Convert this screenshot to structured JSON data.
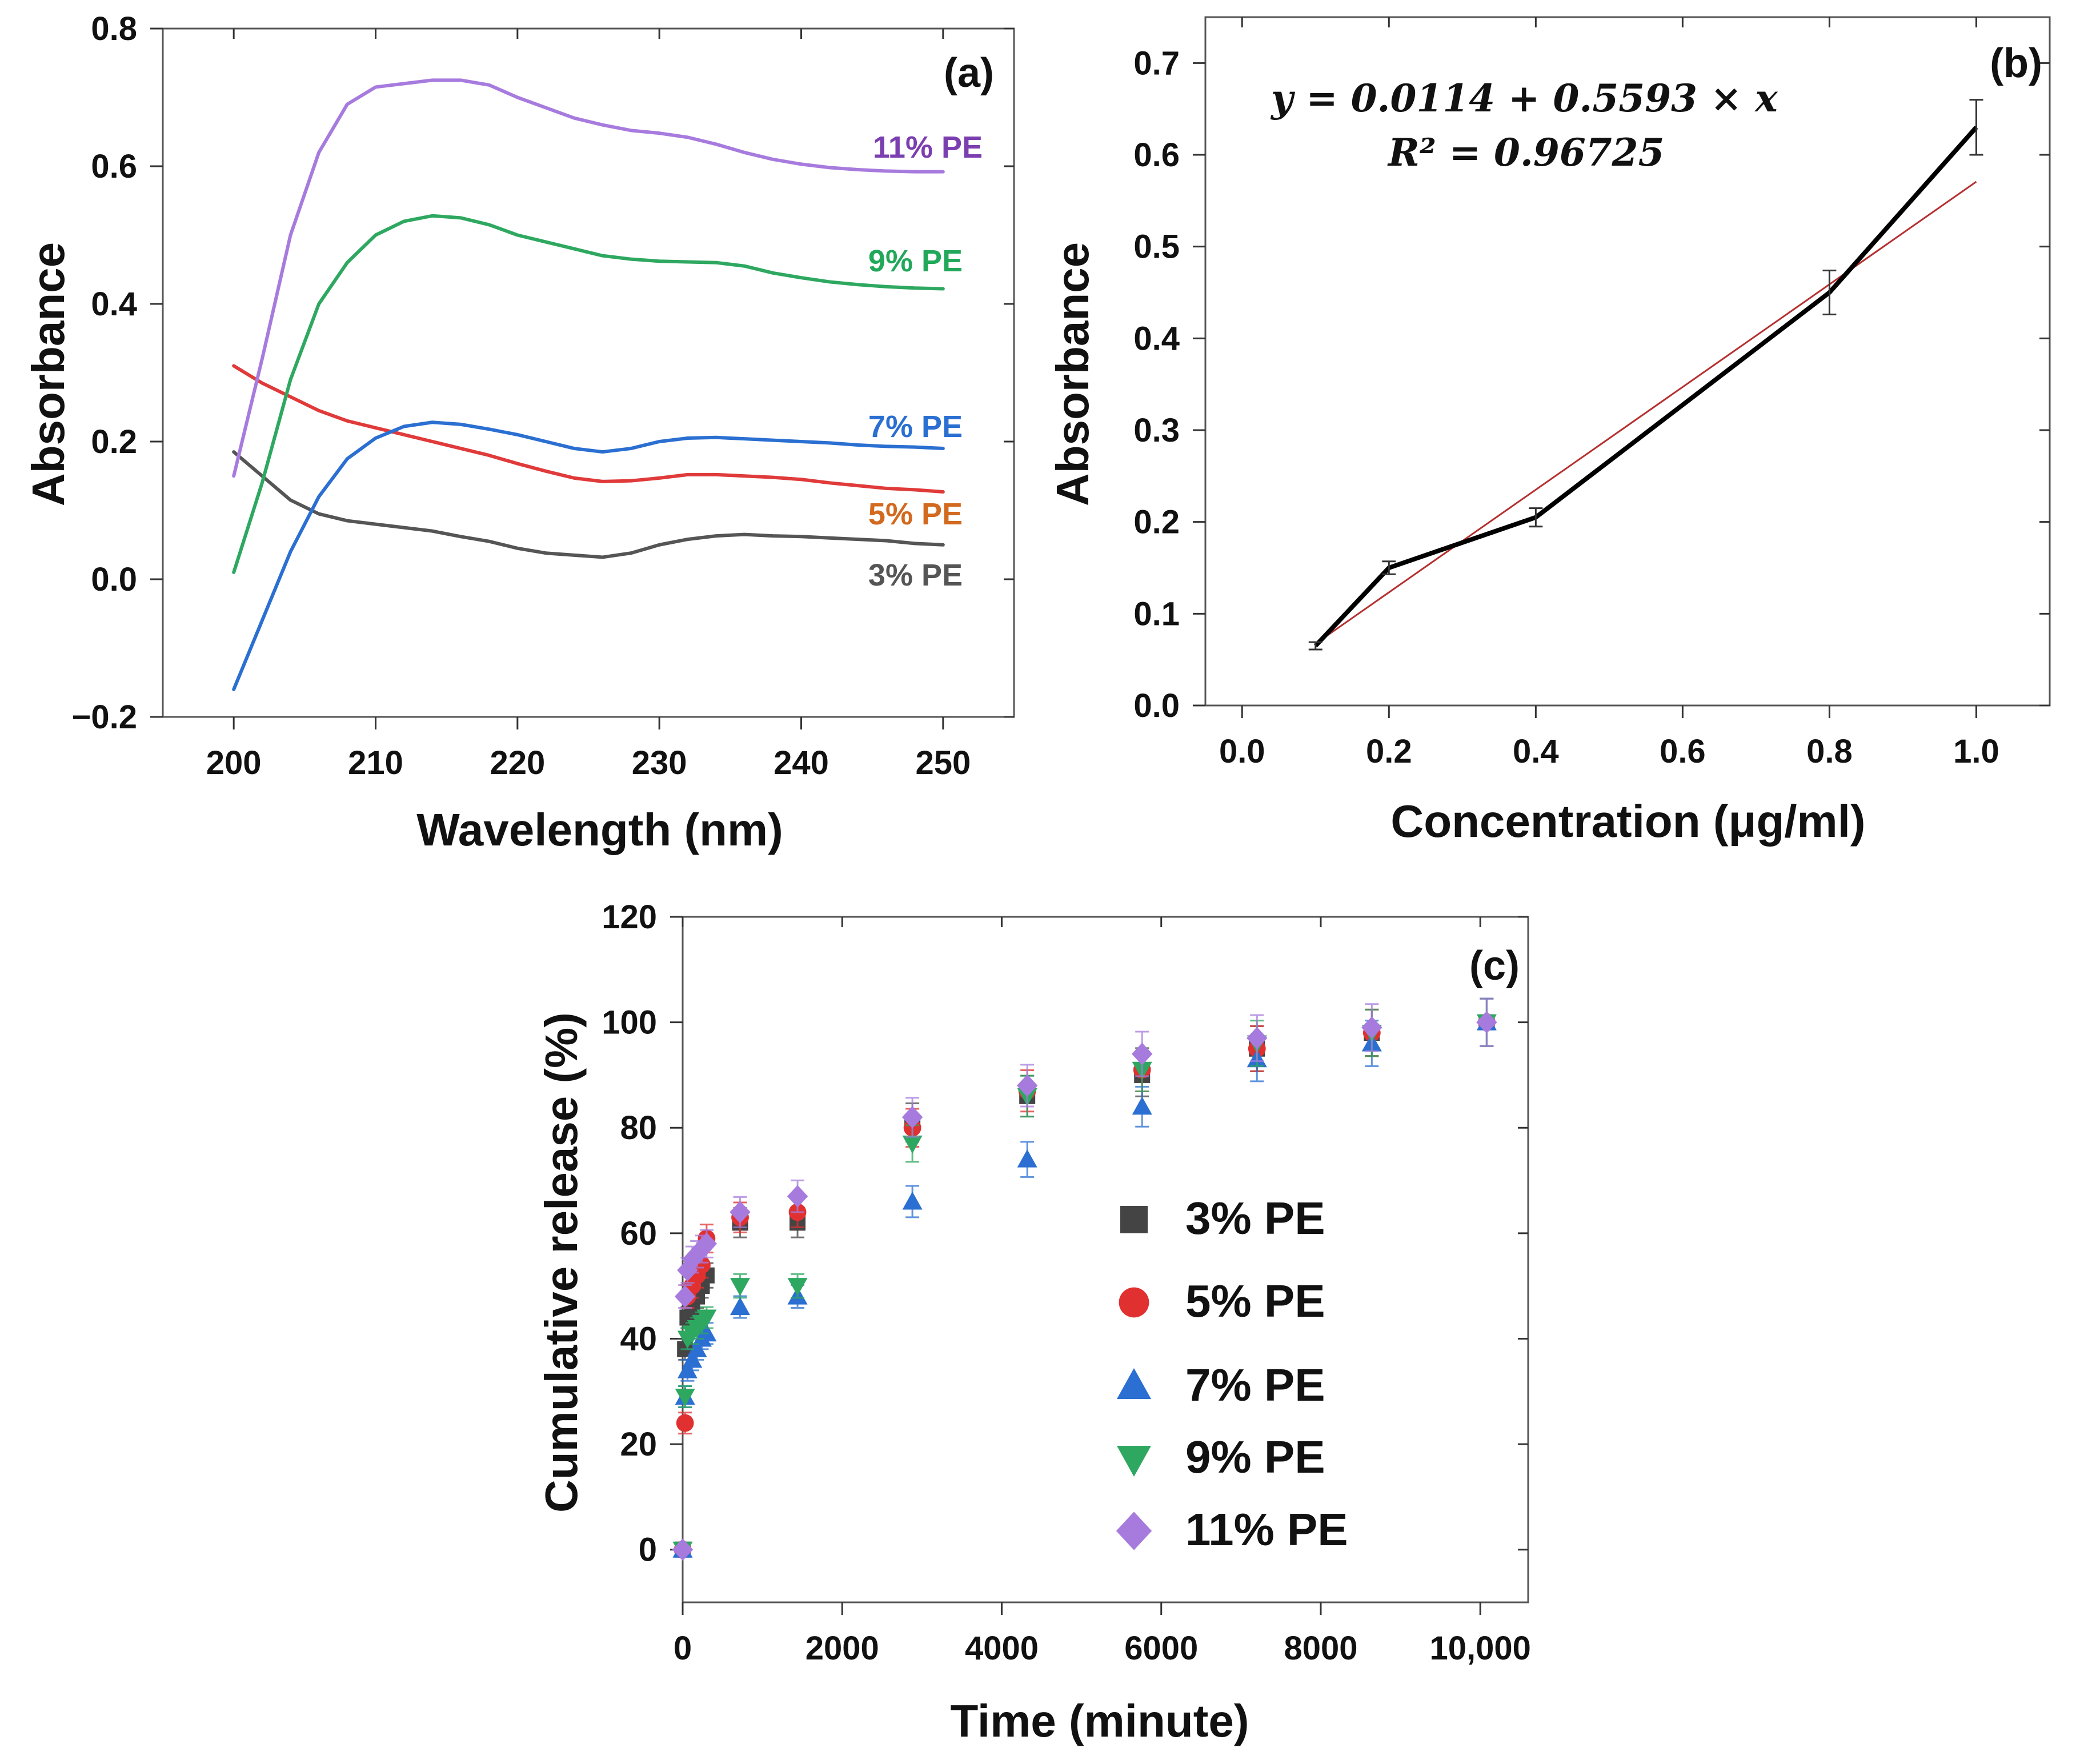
{
  "chart_data": [
    {
      "panel": "(a)",
      "type": "line",
      "xlabel": "Wavelength (nm)",
      "ylabel": "Absorbance",
      "xlim": [
        195,
        255
      ],
      "ylim": [
        -0.2,
        0.8
      ],
      "xticks": [
        "200",
        "210",
        "220",
        "230",
        "240",
        "250"
      ],
      "yticks": [
        "−0.2",
        "0.0",
        "0.2",
        "0.4",
        "0.6",
        "0.8"
      ],
      "x": [
        200,
        202,
        204,
        206,
        208,
        210,
        212,
        214,
        216,
        218,
        220,
        222,
        224,
        226,
        228,
        230,
        232,
        234,
        236,
        238,
        240,
        242,
        244,
        246,
        248,
        250
      ],
      "series": [
        {
          "name": "3% PE",
          "color": "#555555",
          "values": [
            0.185,
            0.15,
            0.115,
            0.095,
            0.085,
            0.08,
            0.075,
            0.07,
            0.062,
            0.055,
            0.045,
            0.038,
            0.035,
            0.032,
            0.038,
            0.05,
            0.058,
            0.063,
            0.065,
            0.063,
            0.062,
            0.06,
            0.058,
            0.056,
            0.052,
            0.05
          ]
        },
        {
          "name": "5% PE",
          "color": "#e03a3a",
          "values": [
            0.31,
            0.285,
            0.265,
            0.245,
            0.23,
            0.22,
            0.21,
            0.2,
            0.19,
            0.18,
            0.168,
            0.157,
            0.147,
            0.142,
            0.143,
            0.147,
            0.152,
            0.152,
            0.15,
            0.148,
            0.145,
            0.14,
            0.136,
            0.132,
            0.13,
            0.127
          ]
        },
        {
          "name": "7% PE",
          "color": "#2a6fd1",
          "values": [
            -0.16,
            -0.06,
            0.04,
            0.12,
            0.175,
            0.205,
            0.222,
            0.228,
            0.225,
            0.218,
            0.21,
            0.2,
            0.19,
            0.185,
            0.19,
            0.2,
            0.205,
            0.206,
            0.204,
            0.202,
            0.2,
            0.198,
            0.195,
            0.193,
            0.192,
            0.19
          ]
        },
        {
          "name": "9% PE",
          "color": "#2ea860",
          "values": [
            0.01,
            0.14,
            0.29,
            0.4,
            0.46,
            0.5,
            0.52,
            0.528,
            0.525,
            0.515,
            0.5,
            0.49,
            0.48,
            0.47,
            0.465,
            0.462,
            0.461,
            0.46,
            0.455,
            0.445,
            0.438,
            0.432,
            0.428,
            0.425,
            0.423,
            0.422
          ]
        },
        {
          "name": "11% PE",
          "color": "#a77bde",
          "values": [
            0.15,
            0.32,
            0.5,
            0.62,
            0.69,
            0.715,
            0.72,
            0.725,
            0.725,
            0.718,
            0.7,
            0.685,
            0.67,
            0.66,
            0.652,
            0.648,
            0.642,
            0.632,
            0.62,
            0.61,
            0.603,
            0.598,
            0.595,
            0.593,
            0.592,
            0.592
          ]
        }
      ],
      "curve_labels": [
        "11% PE",
        "9% PE",
        "7% PE",
        "5% PE",
        "3% PE"
      ],
      "curve_label_colors": [
        "#7b3fb0",
        "#22a85a",
        "#2a6fd1",
        "#d2691e",
        "#555555"
      ]
    },
    {
      "panel": "(b)",
      "type": "line",
      "xlabel": "Concentration (μg/ml)",
      "ylabel": "Absorbance",
      "xlim": [
        -0.05,
        1.1
      ],
      "ylim": [
        0.0,
        0.75
      ],
      "xticks": [
        "0.0",
        "0.2",
        "0.4",
        "0.6",
        "0.8",
        "1.0"
      ],
      "yticks": [
        "0.0",
        "0.1",
        "0.2",
        "0.3",
        "0.4",
        "0.5",
        "0.6",
        "0.7"
      ],
      "x": [
        0.1,
        0.2,
        0.4,
        0.8,
        1.0
      ],
      "series": [
        {
          "name": "measured",
          "color": "#000000",
          "values": [
            0.065,
            0.15,
            0.205,
            0.45,
            0.63
          ],
          "errors": [
            0.004,
            0.007,
            0.01,
            0.024,
            0.03
          ]
        },
        {
          "name": "linear fit",
          "color": "#b53030",
          "x_range": [
            0.1,
            1.0
          ],
          "intercept": 0.0114,
          "slope": 0.5593
        }
      ],
      "equation": "y = 0.0114 + 0.5593 × x",
      "r2_label": "R² = 0.96725"
    },
    {
      "panel": "(c)",
      "type": "scatter",
      "xlabel": "Time (minute)",
      "ylabel": "Cumulative release (%)",
      "xlim": [
        0,
        10600
      ],
      "ylim": [
        -10,
        120
      ],
      "xticks": [
        "0",
        "2000",
        "4000",
        "6000",
        "8000",
        "10,000"
      ],
      "yticks": [
        "0",
        "20",
        "40",
        "60",
        "80",
        "100",
        "120"
      ],
      "x": [
        0,
        30,
        60,
        120,
        180,
        240,
        300,
        720,
        1440,
        2880,
        4320,
        5760,
        7200,
        8640,
        10080
      ],
      "series": [
        {
          "name": "3% PE",
          "color": "#444444",
          "marker": "square",
          "values": [
            0,
            38,
            44,
            46,
            48,
            50,
            52,
            62,
            62,
            81,
            86,
            90,
            95,
            98,
            100
          ]
        },
        {
          "name": "5% PE",
          "color": "#e03030",
          "marker": "circle",
          "values": [
            0,
            24,
            48,
            50,
            52,
            54,
            59,
            63,
            64,
            80,
            87,
            91,
            95,
            98,
            100
          ]
        },
        {
          "name": "7% PE",
          "color": "#2a6fd1",
          "marker": "triangle-up",
          "values": [
            0,
            29,
            34,
            36,
            38,
            40,
            41,
            46,
            48,
            66,
            74,
            84,
            93,
            96,
            100
          ]
        },
        {
          "name": "9% PE",
          "color": "#2ea860",
          "marker": "triangle-down",
          "values": [
            0,
            29,
            40,
            41,
            42,
            43,
            44,
            50,
            50,
            77,
            86,
            91,
            96,
            98,
            100
          ]
        },
        {
          "name": "11% PE",
          "color": "#a77bde",
          "marker": "diamond",
          "values": [
            0,
            48,
            53,
            55,
            56,
            57,
            58,
            64,
            67,
            82,
            88,
            94,
            97,
            99,
            100
          ]
        }
      ],
      "legend_position": "center-right"
    }
  ]
}
